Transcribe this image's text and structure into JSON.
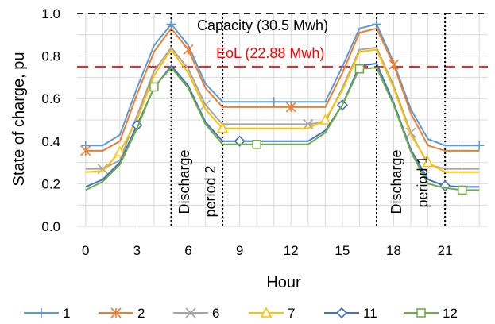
{
  "chart_data": {
    "type": "line",
    "title": "",
    "xlabel": "Hour",
    "ylabel": "State of charge, pu",
    "xlim": [
      -0.5,
      23.5
    ],
    "ylim": [
      0,
      1.0
    ],
    "x_ticks": [
      0,
      3,
      6,
      9,
      12,
      15,
      18,
      21
    ],
    "y_ticks": [
      "0.0",
      "0.2",
      "0.4",
      "0.6",
      "0.8",
      "1.0"
    ],
    "x": [
      0,
      1,
      2,
      3,
      4,
      5,
      6,
      7,
      8,
      9,
      10,
      11,
      12,
      13,
      14,
      15,
      16,
      17,
      18,
      19,
      20,
      21,
      22,
      23
    ],
    "series": [
      {
        "name": "1",
        "color": "#5b9bd5",
        "marker": "plus",
        "values": [
          0.38,
          0.38,
          0.43,
          0.65,
          0.85,
          0.95,
          0.85,
          0.67,
          0.585,
          0.585,
          0.585,
          0.585,
          0.585,
          0.585,
          0.585,
          0.75,
          0.93,
          0.95,
          0.77,
          0.55,
          0.41,
          0.38,
          0.38,
          0.38
        ]
      },
      {
        "name": "2",
        "color": "#ed7d31",
        "marker": "asterisk",
        "values": [
          0.355,
          0.355,
          0.4,
          0.62,
          0.82,
          0.93,
          0.83,
          0.65,
          0.56,
          0.56,
          0.56,
          0.56,
          0.56,
          0.56,
          0.56,
          0.72,
          0.91,
          0.93,
          0.76,
          0.53,
          0.38,
          0.355,
          0.355,
          0.355
        ]
      },
      {
        "name": "6",
        "color": "#a5a5a5",
        "marker": "cross",
        "values": [
          0.27,
          0.27,
          0.31,
          0.52,
          0.73,
          0.84,
          0.74,
          0.57,
          0.48,
          0.48,
          0.48,
          0.48,
          0.48,
          0.48,
          0.49,
          0.65,
          0.83,
          0.84,
          0.66,
          0.44,
          0.29,
          0.27,
          0.27,
          0.27
        ]
      },
      {
        "name": "7",
        "color": "#ffc000",
        "marker": "triangle",
        "values": [
          0.255,
          0.26,
          0.35,
          0.5,
          0.71,
          0.83,
          0.72,
          0.55,
          0.46,
          0.46,
          0.46,
          0.46,
          0.46,
          0.46,
          0.5,
          0.64,
          0.82,
          0.83,
          0.65,
          0.43,
          0.3,
          0.255,
          0.255,
          0.255
        ]
      },
      {
        "name": "11",
        "color": "#4472c4",
        "marker": "diamond",
        "values": [
          0.185,
          0.22,
          0.3,
          0.475,
          0.65,
          0.755,
          0.66,
          0.49,
          0.4,
          0.4,
          0.4,
          0.4,
          0.4,
          0.4,
          0.45,
          0.57,
          0.755,
          0.765,
          0.58,
          0.36,
          0.22,
          0.19,
          0.185,
          0.185
        ]
      },
      {
        "name": "12",
        "color": "#70ad47",
        "marker": "square",
        "values": [
          0.17,
          0.21,
          0.29,
          0.46,
          0.655,
          0.745,
          0.65,
          0.48,
          0.385,
          0.385,
          0.385,
          0.385,
          0.385,
          0.385,
          0.44,
          0.57,
          0.74,
          0.745,
          0.57,
          0.35,
          0.2,
          0.18,
          0.17,
          0.17
        ]
      }
    ],
    "reference_lines": [
      {
        "name": "capacity",
        "y": 1.0,
        "color": "#000000",
        "style": "dashed"
      },
      {
        "name": "eol",
        "y": 0.75,
        "color": "#ff0000",
        "style": "dashed"
      }
    ],
    "vertical_lines": [
      5,
      8,
      17,
      21
    ],
    "annotations": {
      "capacity_label": "Capacity (30.5 Mwh)",
      "eol_label": "EoL (22.88 Mwh)",
      "discharge_label_a": "Discharge",
      "discharge_label_b": "period 2",
      "discharge_label_c": "Discharge",
      "discharge_label_d": "period 1"
    },
    "grid": true,
    "legend": "bottom"
  }
}
